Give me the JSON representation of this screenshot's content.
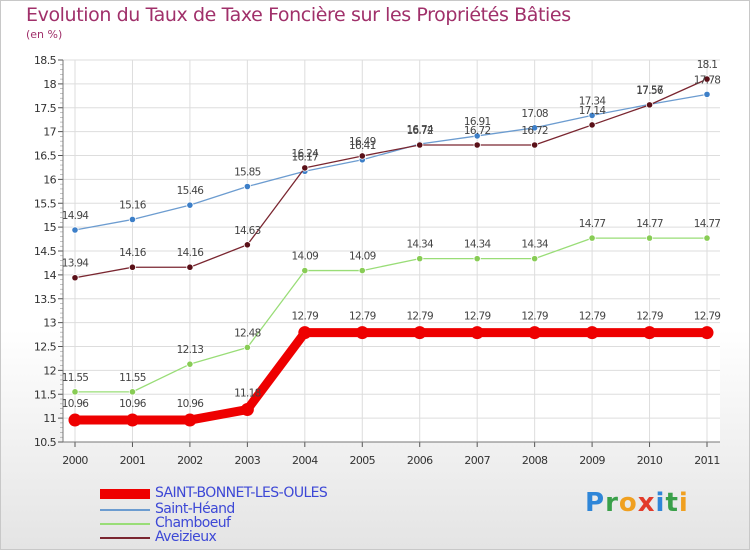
{
  "title": "Evolution du Taux de Taxe Foncière sur les Propriétés Bâties",
  "unit_label": "(en %)",
  "logo_text": "Proxiti",
  "chart_data": {
    "type": "line",
    "title": "Evolution du Taux de Taxe Foncière sur les Propriétés Bâties",
    "ylabel": "(en %)",
    "xlabel": "",
    "ylim": [
      10.5,
      18.5
    ],
    "yticks": [
      "10.5",
      "11",
      "11.5",
      "12",
      "12.5",
      "13",
      "13.5",
      "14",
      "14.5",
      "15",
      "15.5",
      "16",
      "16.5",
      "17",
      "17.5",
      "18",
      "18.5"
    ],
    "grid": true,
    "legend": "bottom-left",
    "categories": [
      "2000",
      "2001",
      "2002",
      "2003",
      "2004",
      "2005",
      "2006",
      "2007",
      "2008",
      "2009",
      "2010",
      "2011"
    ],
    "series": [
      {
        "name": "SAINT-BONNET-LES-OULES",
        "color": "#ee0000",
        "values": [
          10.96,
          10.96,
          10.96,
          11.18,
          12.79,
          12.79,
          12.79,
          12.79,
          12.79,
          12.79,
          12.79,
          12.79
        ],
        "labels": [
          "10.96",
          "10.96",
          "10.96",
          "11.18",
          "12.79",
          "12.79",
          "12.79",
          "12.79",
          "12.79",
          "12.79",
          "12.79",
          "12.79"
        ]
      },
      {
        "name": "Saint-Héand",
        "color": "#6c9cd0",
        "values": [
          14.94,
          15.16,
          15.46,
          15.85,
          16.17,
          16.41,
          16.74,
          16.91,
          17.08,
          17.34,
          17.57,
          17.78
        ],
        "labels": [
          "14.94",
          "15.16",
          "15.46",
          "15.85",
          "16.17",
          "16.41",
          "16.74",
          "16.91",
          "17.08",
          "17.34",
          "17.57",
          "17.78"
        ]
      },
      {
        "name": "Chamboeuf",
        "color": "#99dd77",
        "values": [
          11.55,
          11.55,
          12.13,
          12.48,
          14.09,
          14.09,
          14.34,
          14.34,
          14.34,
          14.77,
          14.77,
          14.77
        ],
        "labels": [
          "11.55",
          "11.55",
          "12.13",
          "12.48",
          "14.09",
          "14.09",
          "14.34",
          "14.34",
          "14.34",
          "14.77",
          "14.77",
          "14.77"
        ]
      },
      {
        "name": "Aveizieux",
        "color": "#7a2630",
        "values": [
          13.94,
          14.16,
          14.16,
          14.63,
          16.24,
          16.49,
          16.72,
          16.72,
          16.72,
          17.14,
          17.56,
          18.1
        ],
        "labels": [
          "13.94",
          "14.16",
          "14.16",
          "14.63",
          "16.24",
          "16.49",
          "16.72",
          "16.72",
          "16.72",
          "17.14",
          "17.56",
          "18.1"
        ]
      }
    ]
  }
}
